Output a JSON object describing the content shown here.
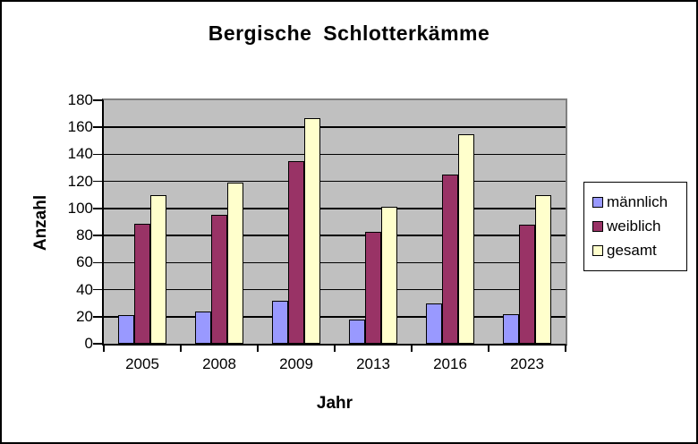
{
  "chart_data": {
    "type": "bar",
    "title": "Bergische Schlotterkämme",
    "xlabel": "Jahr",
    "ylabel": "Anzahl",
    "categories": [
      "2005",
      "2008",
      "2009",
      "2013",
      "2016",
      "2023"
    ],
    "series": [
      {
        "name": "männlich",
        "color": "#9999FF",
        "values": [
          21,
          24,
          32,
          18,
          30,
          22
        ]
      },
      {
        "name": "weiblich",
        "color": "#993366",
        "values": [
          89,
          95,
          135,
          83,
          125,
          88
        ]
      },
      {
        "name": "gesamt",
        "color": "#FFFFCC",
        "values": [
          110,
          119,
          167,
          101,
          155,
          110
        ]
      }
    ],
    "ylim": [
      0,
      180
    ],
    "yticks": [
      0,
      20,
      40,
      60,
      80,
      100,
      120,
      140,
      160,
      180
    ],
    "grid": true,
    "legend_position": "right",
    "plot_background": "#C0C0C0",
    "plot_border_color": "#808080",
    "gridline_color": "#000000",
    "axis_color": "#000000",
    "bar_border_color": "#000000"
  }
}
